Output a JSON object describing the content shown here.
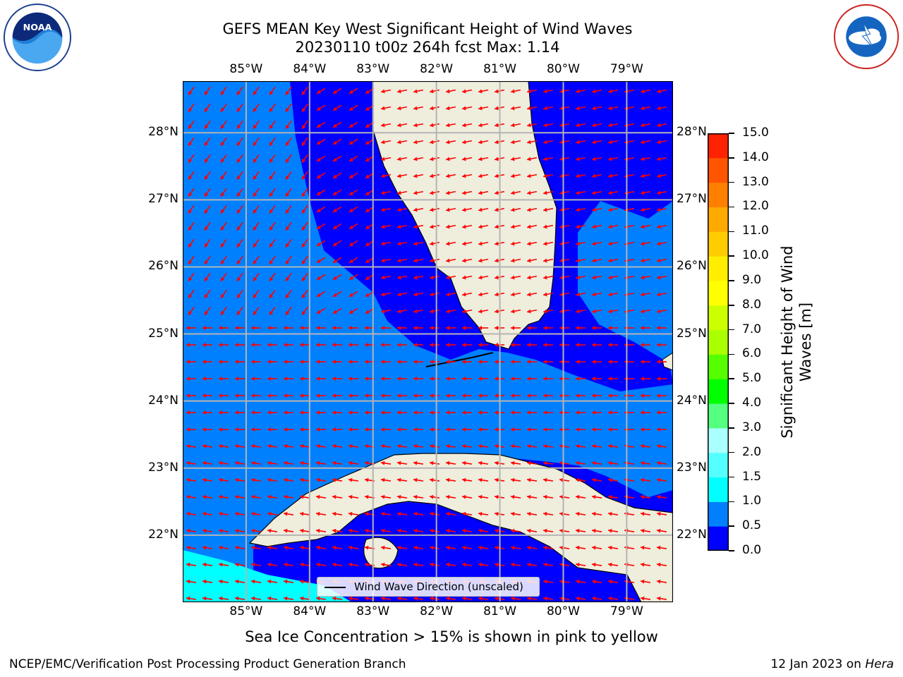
{
  "title_line1": "GEFS MEAN Key West Significant Height of Wind Waves",
  "title_line2": "20230110 t00z 264h fcst   Max: 1.14",
  "logos": {
    "left": "noaa-logo",
    "right": "nws-logo"
  },
  "map": {
    "lon_ticks": [
      "85°W",
      "84°W",
      "83°W",
      "82°W",
      "81°W",
      "80°W",
      "79°W"
    ],
    "lat_ticks": [
      "28°N",
      "27°N",
      "26°N",
      "25°N",
      "24°N",
      "23°N",
      "22°N"
    ],
    "lon_values": [
      -85,
      -84,
      -83,
      -82,
      -81,
      -80,
      -79
    ],
    "lat_values": [
      28,
      27,
      26,
      25,
      24,
      23,
      22
    ],
    "extent": {
      "lon_min": -86,
      "lon_max": -78.27,
      "lat_min": 21,
      "lat_max": 28.77
    },
    "land_color": "#efeddc",
    "ocean_colors": {
      "band_0_0.5": "#0000ff",
      "band_0.5_1.0": "#0080ff",
      "band_1.0_1.5": "#00ffff"
    },
    "arrow_color": "#ff0000",
    "legend_label": "Wind Wave Direction (unscaled)"
  },
  "colorbar": {
    "title": "Significant Height of Wind Waves [m]",
    "levels": [
      "0.0",
      "0.5",
      "1.0",
      "1.5",
      "2.0",
      "3.0",
      "4.0",
      "5.0",
      "6.0",
      "7.0",
      "8.0",
      "9.0",
      "10.0",
      "11.0",
      "12.0",
      "13.0",
      "14.0",
      "15.0"
    ],
    "colors": [
      "#0000ff",
      "#0080ff",
      "#00ffff",
      "#55ffff",
      "#aaffff",
      "#55ff80",
      "#00ff00",
      "#55ff00",
      "#aaff00",
      "#ccff00",
      "#ffff00",
      "#ffee00",
      "#ffcc00",
      "#ffaa00",
      "#ff8000",
      "#ff5500",
      "#ff2200"
    ]
  },
  "note": "Sea Ice Concentration > 15% is shown in pink to yellow",
  "footer_left": "NCEP/EMC/Verification Post Processing Product Generation Branch",
  "footer_date": "12 Jan 2023 on ",
  "footer_machine": "Hera"
}
